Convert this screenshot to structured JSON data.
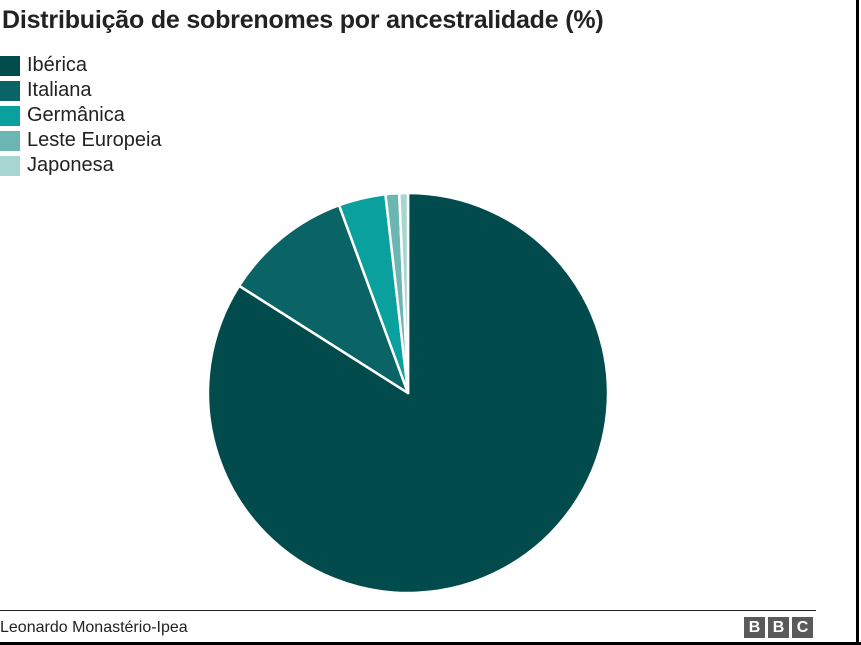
{
  "chart_data": {
    "type": "pie",
    "title": "Distribuição de sobrenomes por ancestralidade (%)",
    "slices": [
      {
        "label": "Ibérica",
        "value": 84.0,
        "color": "#024b4d"
      },
      {
        "label": "Italiana",
        "value": 10.4,
        "color": "#0a6466"
      },
      {
        "label": "Germânica",
        "value": 3.8,
        "color": "#09a09d"
      },
      {
        "label": "Leste Europeia",
        "value": 1.1,
        "color": "#6bb6b3"
      },
      {
        "label": "Japonesa",
        "value": 0.7,
        "color": "#a7d6d2"
      }
    ],
    "legend_position": "top-left",
    "start_angle": "12 o'clock",
    "direction": "clockwise"
  },
  "footer": {
    "source": "Leonardo Monastério-Ipea",
    "logo_letters": [
      "B",
      "B",
      "C"
    ]
  }
}
